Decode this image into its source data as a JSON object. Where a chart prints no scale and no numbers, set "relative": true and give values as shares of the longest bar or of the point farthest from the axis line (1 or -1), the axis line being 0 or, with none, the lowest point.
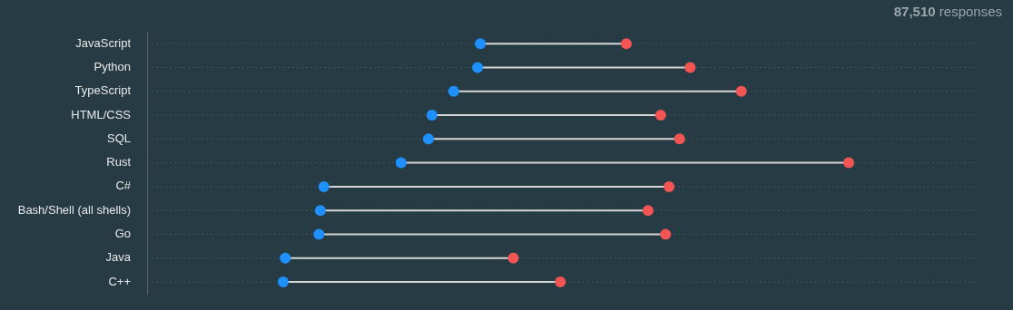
{
  "chart_data": {
    "type": "scatter",
    "orientation": "horizontal",
    "relative": true,
    "categories": [
      "JavaScript",
      "Python",
      "TypeScript",
      "HTML/CSS",
      "SQL",
      "Rust",
      "C#",
      "Bash/Shell (all shells)",
      "Go",
      "Java",
      "C++"
    ],
    "series": [
      {
        "color": "#1e90ff",
        "values": [
          0.475,
          0.471,
          0.437,
          0.406,
          0.401,
          0.362,
          0.252,
          0.247,
          0.245,
          0.197,
          0.194
        ]
      },
      {
        "color": "#f35454",
        "values": [
          0.683,
          0.774,
          0.847,
          0.732,
          0.759,
          1,
          0.744,
          0.714,
          0.739,
          0.522,
          0.589
        ]
      }
    ],
    "annotations": [
      "87,510 responses"
    ],
    "grid": "y",
    "marker": "circle",
    "legend": false
  }
}
